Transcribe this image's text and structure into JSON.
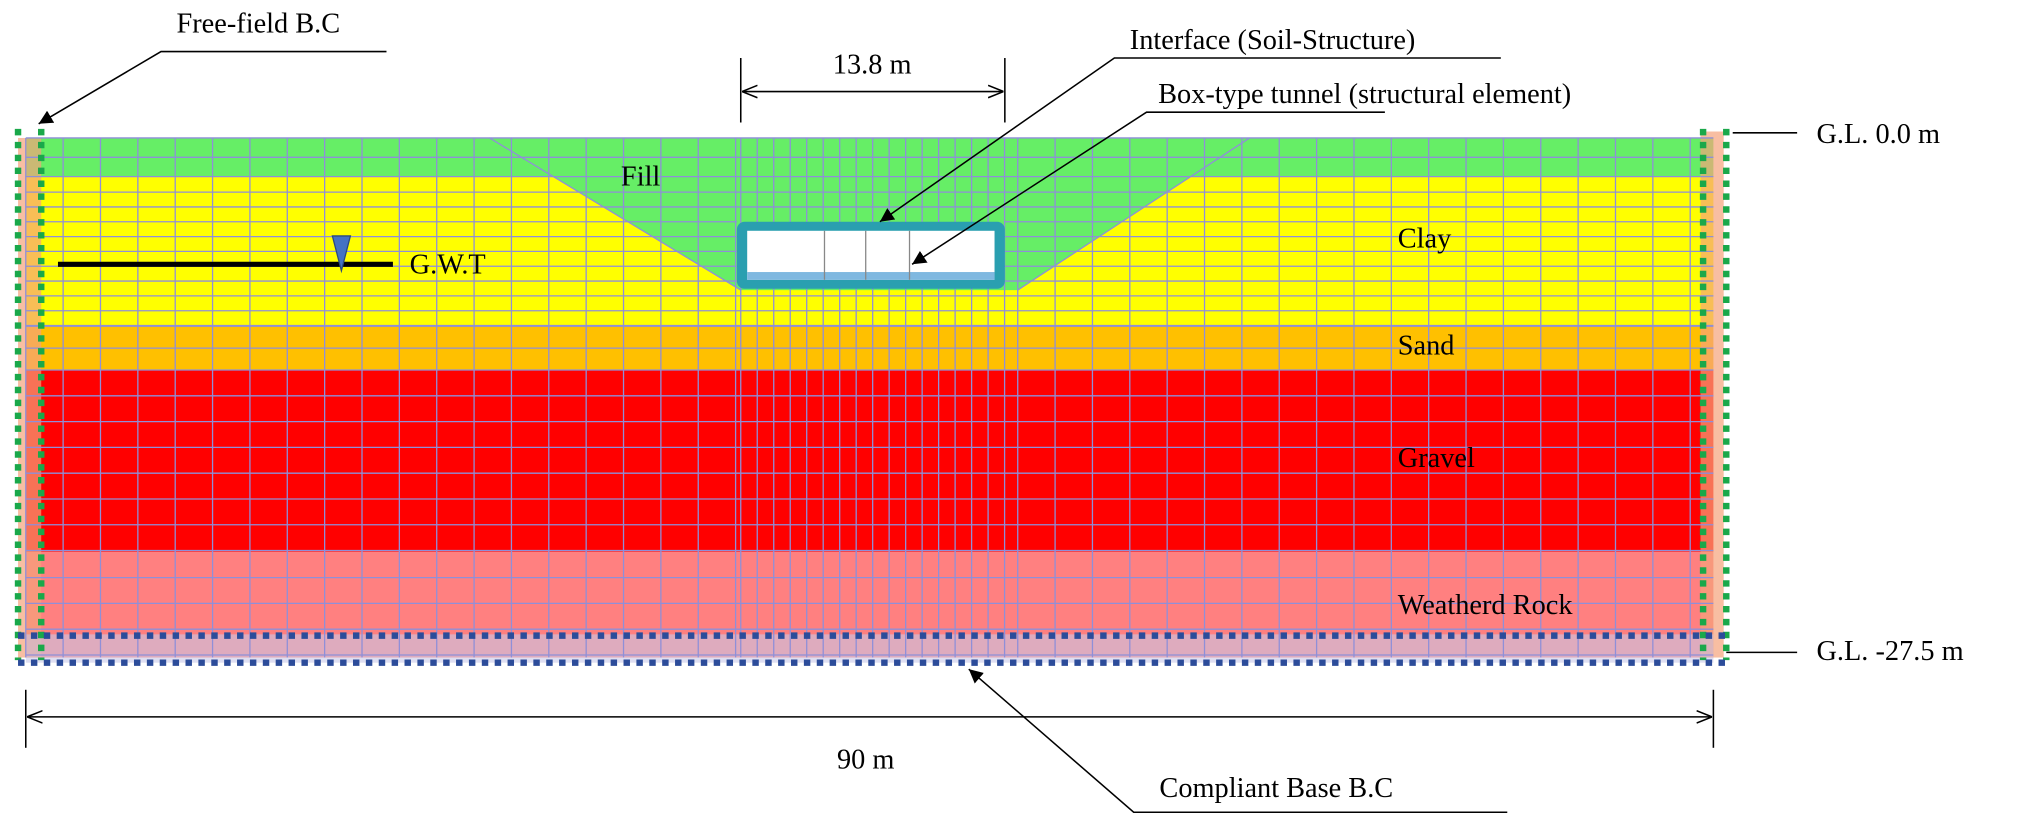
{
  "annotations": {
    "free_field_bc": "Free-field B.C",
    "tunnel_width": "13.8 m",
    "interface": "Interface (Soil-Structure)",
    "tunnel": "Box-type tunnel (structural element)",
    "ground_level_top": "G.L. 0.0 m",
    "water_table": "G.W.T",
    "ground_level_bottom": "G.L. -27.5 m",
    "model_width": "90 m",
    "compliant_base_bc": "Compliant Base B.C"
  },
  "layers": [
    "Fill",
    "Clay",
    "Sand",
    "Gravel",
    "Weatherd Rock"
  ]
}
